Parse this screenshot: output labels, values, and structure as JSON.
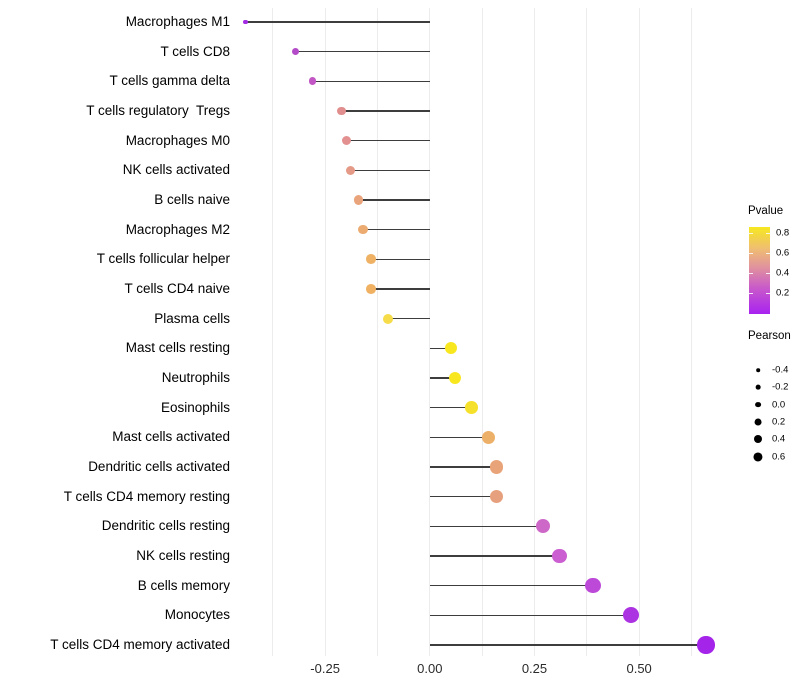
{
  "chart_data": {
    "type": "scatter",
    "subtype": "lollipop",
    "title": "",
    "xlabel": "",
    "ylabel": "",
    "xlim": [
      -0.47,
      0.69
    ],
    "x_ticks": [
      {
        "label": "-0.25",
        "value": -0.25
      },
      {
        "label": "0.00",
        "value": 0.0
      },
      {
        "label": "0.25",
        "value": 0.25
      },
      {
        "label": "0.50",
        "value": 0.5
      }
    ],
    "grid": {
      "minor_step": 0.125,
      "range_start": -0.375,
      "range_end": 0.625
    },
    "stem_baseline": 0.0,
    "size_scale": {
      "min": -0.44,
      "max": 0.66
    },
    "points": [
      {
        "label": "Macrophages M1",
        "pearson": -0.44,
        "pvalue": 0.02,
        "color": "#a32be4"
      },
      {
        "label": "T cells CD8",
        "pearson": -0.32,
        "pvalue": 0.13,
        "color": "#b44bc8"
      },
      {
        "label": "T cells gamma delta",
        "pearson": -0.28,
        "pvalue": 0.18,
        "color": "#c156c4"
      },
      {
        "label": "T cells regulatory  Tregs",
        "pearson": -0.21,
        "pvalue": 0.44,
        "color": "#e18e8e"
      },
      {
        "label": "Macrophages M0",
        "pearson": -0.2,
        "pvalue": 0.45,
        "color": "#e29190"
      },
      {
        "label": "NK cells activated",
        "pearson": -0.19,
        "pvalue": 0.49,
        "color": "#e49a87"
      },
      {
        "label": "B cells naive",
        "pearson": -0.17,
        "pvalue": 0.54,
        "color": "#e9a47c"
      },
      {
        "label": "Macrophages M2",
        "pearson": -0.16,
        "pvalue": 0.57,
        "color": "#ecab71"
      },
      {
        "label": "T cells follicular helper",
        "pearson": -0.14,
        "pvalue": 0.61,
        "color": "#efb164"
      },
      {
        "label": "T cells CD4 naive",
        "pearson": -0.14,
        "pvalue": 0.61,
        "color": "#f0b163"
      },
      {
        "label": "Plasma cells",
        "pearson": -0.1,
        "pvalue": 0.76,
        "color": "#f5dc48"
      },
      {
        "label": "Mast cells resting",
        "pearson": 0.05,
        "pvalue": 0.84,
        "color": "#f8e71f"
      },
      {
        "label": "Neutrophils",
        "pearson": 0.06,
        "pvalue": 0.84,
        "color": "#f8e71f"
      },
      {
        "label": "Eosinophils",
        "pearson": 0.1,
        "pvalue": 0.79,
        "color": "#f5e12c"
      },
      {
        "label": "Mast cells activated",
        "pearson": 0.14,
        "pvalue": 0.6,
        "color": "#edb069"
      },
      {
        "label": "Dendritic cells activated",
        "pearson": 0.16,
        "pvalue": 0.54,
        "color": "#e9a378"
      },
      {
        "label": "T cells CD4 memory resting",
        "pearson": 0.16,
        "pvalue": 0.52,
        "color": "#e7a07d"
      },
      {
        "label": "Dendritic cells resting",
        "pearson": 0.27,
        "pvalue": 0.26,
        "color": "#ce68c8"
      },
      {
        "label": "NK cells resting",
        "pearson": 0.31,
        "pvalue": 0.23,
        "color": "#cb5ed0"
      },
      {
        "label": "B cells memory",
        "pearson": 0.39,
        "pvalue": 0.16,
        "color": "#bc49d8"
      },
      {
        "label": "Monocytes",
        "pearson": 0.48,
        "pvalue": 0.07,
        "color": "#ac33e2"
      },
      {
        "label": "T cells CD4 memory activated",
        "pearson": 0.66,
        "pvalue": 0.02,
        "color": "#a524e9"
      }
    ],
    "legends": {
      "pvalue": {
        "title": "Pvalue",
        "position": "right",
        "gradient_bottom": "#a822f0",
        "gradient_top": "#f6e821",
        "ticks": [
          {
            "label": "0.8",
            "rel_y": 6
          },
          {
            "label": "0.6",
            "rel_y": 26
          },
          {
            "label": "0.4",
            "rel_y": 46
          },
          {
            "label": "0.2",
            "rel_y": 66
          }
        ]
      },
      "pearson": {
        "title": "Pearson",
        "position": "right",
        "dot_color": "#000000",
        "entries": [
          {
            "label": "-0.4",
            "value": -0.4
          },
          {
            "label": "-0.2",
            "value": -0.2
          },
          {
            "label": "0.0",
            "value": 0.0
          },
          {
            "label": "0.2",
            "value": 0.2
          },
          {
            "label": "0.4",
            "value": 0.4
          },
          {
            "label": "0.6",
            "value": 0.6
          }
        ]
      }
    }
  }
}
